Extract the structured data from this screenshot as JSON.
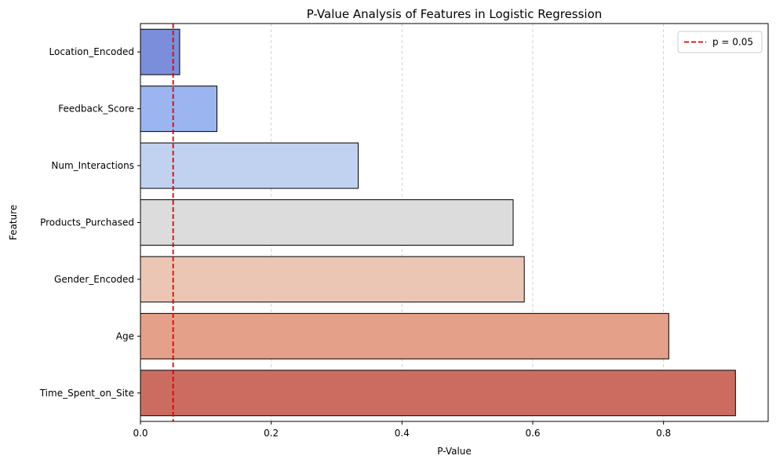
{
  "chart_data": {
    "type": "bar",
    "orientation": "horizontal",
    "title": "P-Value Analysis of Features in Logistic Regression",
    "xlabel": "P-Value",
    "ylabel": "Feature",
    "xlim": [
      0,
      0.96
    ],
    "xticks": [
      "0.0",
      "0.2",
      "0.4",
      "0.6",
      "0.8"
    ],
    "grid": "x-dashed",
    "categories": [
      "Location_Encoded",
      "Feedback_Score",
      "Num_Interactions",
      "Products_Purchased",
      "Gender_Encoded",
      "Age",
      "Time_Spent_on_Site"
    ],
    "values": [
      0.06,
      0.117,
      0.333,
      0.57,
      0.587,
      0.808,
      0.91
    ],
    "colors": [
      "#7a8edc",
      "#9bb5f0",
      "#c1d2f0",
      "#dcdcdc",
      "#ebc6b4",
      "#e5a089",
      "#cc6c61"
    ],
    "reference_line": {
      "value": 0.05,
      "label": "p = 0.05",
      "color": "#e00000",
      "style": "dashed"
    },
    "legend": {
      "placement": "top-right",
      "entries": [
        "p = 0.05"
      ]
    }
  }
}
